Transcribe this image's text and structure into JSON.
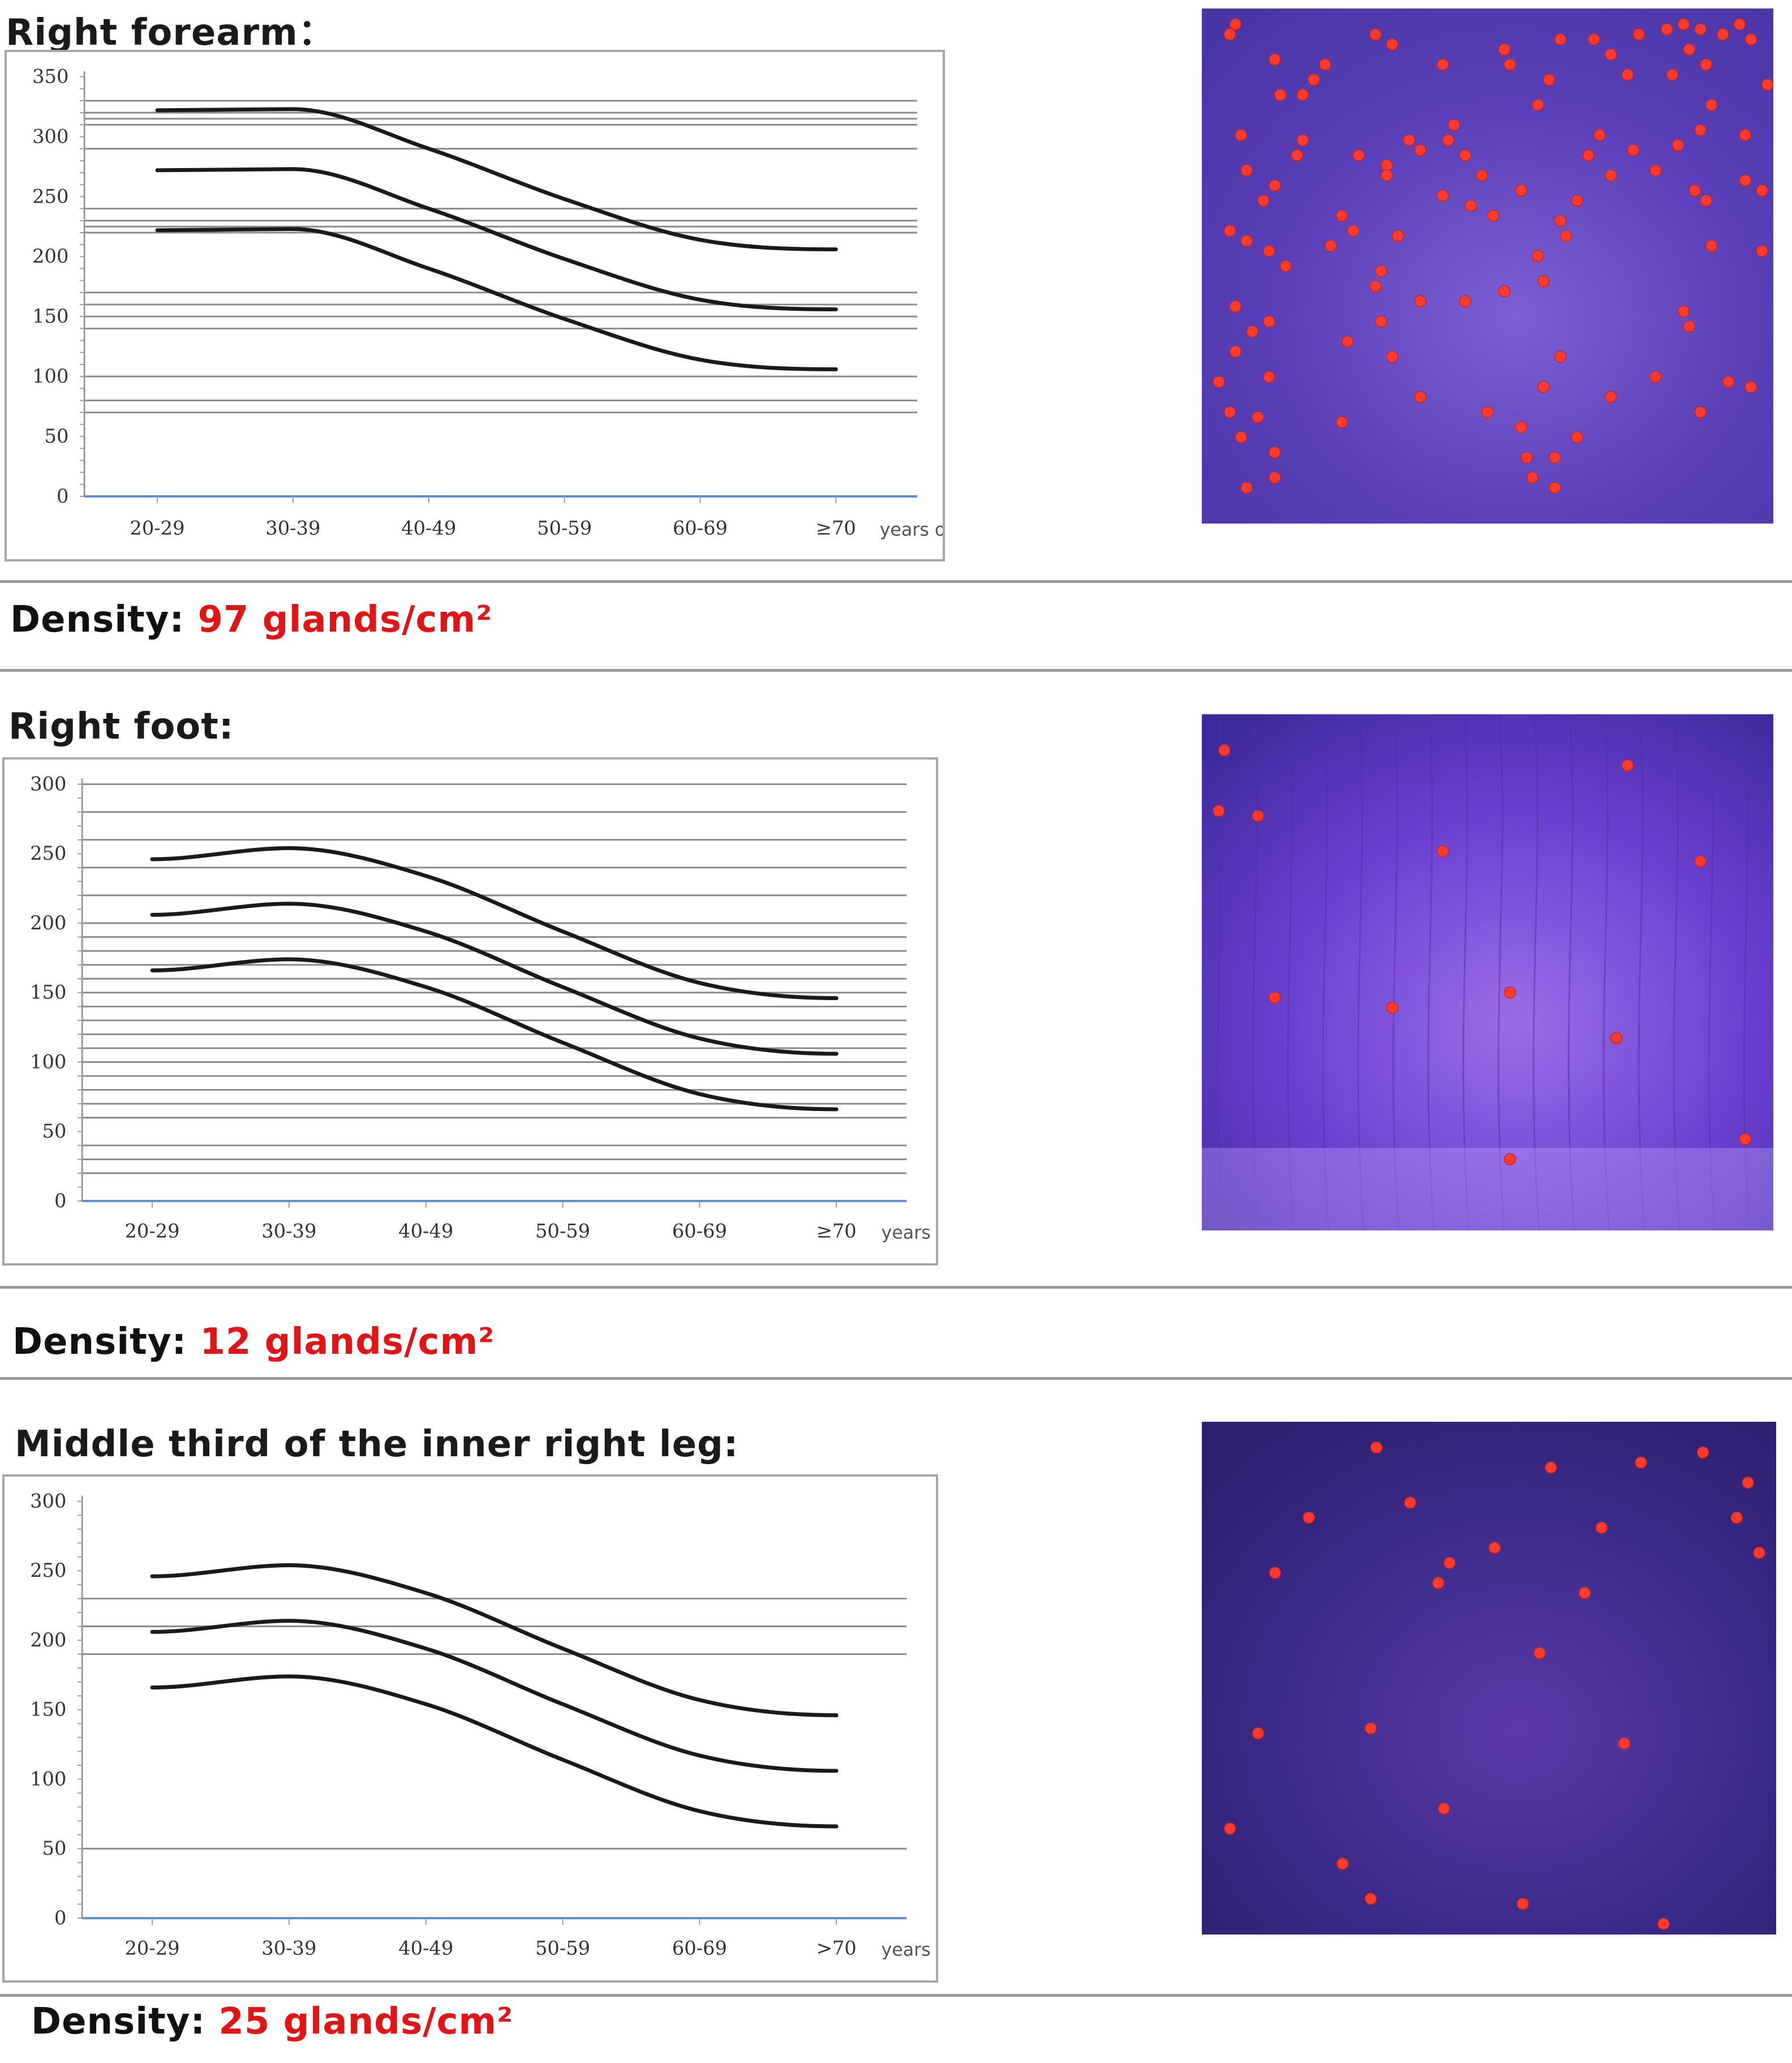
{
  "sections": [
    {
      "title": "Right forearm：",
      "density_label": "Density:",
      "density_value": "97 glands/cm²"
    },
    {
      "title": "Right foot:",
      "density_label": "Density:",
      "density_value": "12 glands/cm²"
    },
    {
      "title": "Middle third of the inner right leg:",
      "density_label": "Density:",
      "density_value": "25 glands/cm²"
    }
  ],
  "colors": {
    "curve": "#1a1a1a",
    "gridline": "#8a8a8a",
    "baseline": "#5b8fd6",
    "density_value": "#e01515",
    "gland_dot": "#ff3b30",
    "micro_forearm": "#5a3fb8",
    "micro_foot": "#6a3fcf",
    "micro_leg": "#3c2a8a"
  },
  "chart_data": [
    {
      "type": "line",
      "x_unit": "years old",
      "categories": [
        "20-29",
        "30-39",
        "40-49",
        "50-59",
        "60-69",
        "≥70"
      ],
      "ylim": [
        0,
        350
      ],
      "yticks": [
        0,
        50,
        100,
        150,
        200,
        250,
        300,
        350
      ],
      "grid_y": [
        70,
        80,
        100,
        140,
        150,
        160,
        170,
        220,
        225,
        230,
        240,
        290,
        310,
        315,
        320,
        330
      ],
      "series": [
        {
          "values": [
            322,
            323,
            290,
            248,
            214,
            206
          ]
        },
        {
          "values": [
            272,
            273,
            240,
            198,
            164,
            156
          ]
        },
        {
          "values": [
            222,
            223,
            190,
            148,
            114,
            106
          ]
        }
      ]
    },
    {
      "type": "line",
      "x_unit": "years old",
      "categories": [
        "20-29",
        "30-39",
        "40-49",
        "50-59",
        "60-69",
        "≥70"
      ],
      "ylim": [
        0,
        300
      ],
      "yticks": [
        0,
        50,
        100,
        150,
        200,
        250,
        300
      ],
      "grid_y": [
        20,
        30,
        40,
        60,
        70,
        80,
        90,
        100,
        110,
        120,
        130,
        140,
        150,
        160,
        170,
        180,
        190,
        200,
        220,
        240,
        260,
        280,
        300
      ],
      "series": [
        {
          "values": [
            246,
            254,
            234,
            194,
            157,
            146
          ]
        },
        {
          "values": [
            206,
            214,
            194,
            154,
            117,
            106
          ]
        },
        {
          "values": [
            166,
            174,
            154,
            114,
            77,
            66
          ]
        }
      ]
    },
    {
      "type": "line",
      "x_unit": "years old",
      "categories": [
        "20-29",
        "30-39",
        "40-49",
        "50-59",
        "60-69",
        ">70"
      ],
      "ylim": [
        0,
        300
      ],
      "yticks": [
        0,
        50,
        100,
        150,
        200,
        250,
        300
      ],
      "grid_y": [
        50,
        190,
        210,
        230
      ],
      "series": [
        {
          "values": [
            246,
            254,
            234,
            194,
            157,
            146
          ]
        },
        {
          "values": [
            206,
            214,
            194,
            154,
            117,
            106
          ]
        },
        {
          "values": [
            166,
            174,
            154,
            114,
            77,
            66
          ]
        }
      ]
    }
  ],
  "gland_maps": [
    {
      "dots": [
        [
          0.05,
          0.02
        ],
        [
          0.04,
          0.04
        ],
        [
          0.12,
          0.09
        ],
        [
          0.13,
          0.16
        ],
        [
          0.21,
          0.1
        ],
        [
          0.19,
          0.13
        ],
        [
          0.17,
          0.16
        ],
        [
          0.3,
          0.04
        ],
        [
          0.33,
          0.06
        ],
        [
          0.42,
          0.1
        ],
        [
          0.53,
          0.07
        ],
        [
          0.54,
          0.1
        ],
        [
          0.61,
          0.13
        ],
        [
          0.59,
          0.18
        ],
        [
          0.63,
          0.05
        ],
        [
          0.69,
          0.05
        ],
        [
          0.72,
          0.08
        ],
        [
          0.75,
          0.12
        ],
        [
          0.77,
          0.04
        ],
        [
          0.82,
          0.03
        ],
        [
          0.85,
          0.02
        ],
        [
          0.88,
          0.03
        ],
        [
          0.92,
          0.04
        ],
        [
          0.95,
          0.02
        ],
        [
          0.97,
          0.05
        ],
        [
          0.86,
          0.07
        ],
        [
          0.83,
          0.12
        ],
        [
          0.89,
          0.1
        ],
        [
          1,
          0.14
        ],
        [
          0.9,
          0.18
        ],
        [
          0.96,
          0.24
        ],
        [
          0.88,
          0.23
        ],
        [
          0.06,
          0.24
        ],
        [
          0.17,
          0.25
        ],
        [
          0.16,
          0.28
        ],
        [
          0.27,
          0.28
        ],
        [
          0.32,
          0.3
        ],
        [
          0.32,
          0.32
        ],
        [
          0.36,
          0.25
        ],
        [
          0.38,
          0.27
        ],
        [
          0.43,
          0.25
        ],
        [
          0.44,
          0.22
        ],
        [
          0.46,
          0.28
        ],
        [
          0.49,
          0.32
        ],
        [
          0.56,
          0.35
        ],
        [
          0.51,
          0.4
        ],
        [
          0.42,
          0.36
        ],
        [
          0.47,
          0.38
        ],
        [
          0.63,
          0.41
        ],
        [
          0.68,
          0.28
        ],
        [
          0.7,
          0.24
        ],
        [
          0.72,
          0.32
        ],
        [
          0.66,
          0.37
        ],
        [
          0.76,
          0.27
        ],
        [
          0.84,
          0.26
        ],
        [
          0.8,
          0.31
        ],
        [
          0.87,
          0.35
        ],
        [
          0.96,
          0.33
        ],
        [
          0.89,
          0.37
        ],
        [
          0.9,
          0.46
        ],
        [
          0.99,
          0.35
        ],
        [
          0.99,
          0.47
        ],
        [
          0.07,
          0.31
        ],
        [
          0.12,
          0.34
        ],
        [
          0.1,
          0.37
        ],
        [
          0.04,
          0.43
        ],
        [
          0.07,
          0.45
        ],
        [
          0.11,
          0.47
        ],
        [
          0.14,
          0.5
        ],
        [
          0.24,
          0.4
        ],
        [
          0.26,
          0.43
        ],
        [
          0.22,
          0.46
        ],
        [
          0.34,
          0.44
        ],
        [
          0.31,
          0.51
        ],
        [
          0.3,
          0.54
        ],
        [
          0.38,
          0.57
        ],
        [
          0.46,
          0.57
        ],
        [
          0.53,
          0.55
        ],
        [
          0.6,
          0.53
        ],
        [
          0.64,
          0.44
        ],
        [
          0.59,
          0.48
        ],
        [
          0.05,
          0.58
        ],
        [
          0.08,
          0.63
        ],
        [
          0.11,
          0.61
        ],
        [
          0.05,
          0.67
        ],
        [
          0.02,
          0.73
        ],
        [
          0.11,
          0.72
        ],
        [
          0.04,
          0.79
        ],
        [
          0.09,
          0.8
        ],
        [
          0.06,
          0.84
        ],
        [
          0.12,
          0.87
        ],
        [
          0.07,
          0.94
        ],
        [
          0.12,
          0.92
        ],
        [
          0.25,
          0.65
        ],
        [
          0.31,
          0.61
        ],
        [
          0.33,
          0.68
        ],
        [
          0.24,
          0.81
        ],
        [
          0.38,
          0.76
        ],
        [
          0.63,
          0.68
        ],
        [
          0.6,
          0.74
        ],
        [
          0.5,
          0.79
        ],
        [
          0.56,
          0.82
        ],
        [
          0.57,
          0.88
        ],
        [
          0.58,
          0.92
        ],
        [
          0.62,
          0.88
        ],
        [
          0.66,
          0.84
        ],
        [
          0.62,
          0.94
        ],
        [
          0.72,
          0.76
        ],
        [
          0.8,
          0.72
        ],
        [
          0.88,
          0.79
        ],
        [
          0.85,
          0.59
        ],
        [
          0.93,
          0.73
        ],
        [
          0.97,
          0.74
        ],
        [
          0.86,
          0.62
        ]
      ]
    },
    {
      "dots": [
        [
          0.03,
          0.06
        ],
        [
          0.02,
          0.18
        ],
        [
          0.09,
          0.19
        ],
        [
          0.42,
          0.26
        ],
        [
          0.75,
          0.09
        ],
        [
          0.88,
          0.28
        ],
        [
          0.12,
          0.55
        ],
        [
          0.33,
          0.57
        ],
        [
          0.54,
          0.54
        ],
        [
          0.73,
          0.63
        ],
        [
          0.96,
          0.83
        ],
        [
          0.54,
          0.87
        ]
      ]
    },
    {
      "dots": [
        [
          0.3,
          0.04
        ],
        [
          0.18,
          0.18
        ],
        [
          0.36,
          0.15
        ],
        [
          0.12,
          0.29
        ],
        [
          0.43,
          0.27
        ],
        [
          0.41,
          0.31
        ],
        [
          0.51,
          0.24
        ],
        [
          0.61,
          0.08
        ],
        [
          0.77,
          0.07
        ],
        [
          0.88,
          0.05
        ],
        [
          0.96,
          0.11
        ],
        [
          0.94,
          0.18
        ],
        [
          0.98,
          0.25
        ],
        [
          0.7,
          0.2
        ],
        [
          0.67,
          0.33
        ],
        [
          0.59,
          0.45
        ],
        [
          0.09,
          0.61
        ],
        [
          0.29,
          0.6
        ],
        [
          0.74,
          0.63
        ],
        [
          0.04,
          0.8
        ],
        [
          0.42,
          0.76
        ],
        [
          0.24,
          0.87
        ],
        [
          0.29,
          0.94
        ],
        [
          0.56,
          0.95
        ],
        [
          0.81,
          0.99
        ]
      ]
    }
  ]
}
